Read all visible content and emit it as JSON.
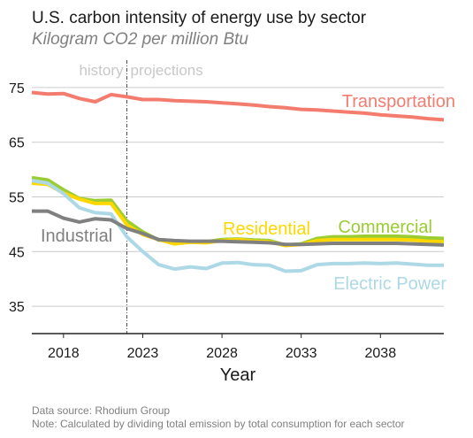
{
  "chart_data": {
    "type": "line",
    "title": "U.S. carbon intensity of energy use by sector",
    "subtitle": "Kilogram CO2 per million Btu",
    "xlabel": "Year",
    "ylabel": "",
    "xlim": [
      2016,
      2042
    ],
    "ylim": [
      30,
      80
    ],
    "x_ticks": [
      2018,
      2023,
      2028,
      2033,
      2038
    ],
    "y_ticks": [
      35,
      45,
      55,
      65,
      75
    ],
    "grid": "horizontal",
    "divider_year": 2022,
    "era_labels": {
      "history": "history",
      "projections": "projections"
    },
    "x": [
      2016,
      2017,
      2018,
      2019,
      2020,
      2021,
      2022,
      2023,
      2024,
      2025,
      2026,
      2027,
      2028,
      2029,
      2030,
      2031,
      2032,
      2033,
      2034,
      2035,
      2036,
      2037,
      2038,
      2039,
      2040,
      2041,
      2042
    ],
    "series": [
      {
        "name": "Transportation",
        "color": "#f47c6e",
        "values": [
          74.1,
          73.8,
          73.9,
          73.0,
          72.4,
          73.7,
          73.3,
          72.8,
          72.8,
          72.6,
          72.5,
          72.4,
          72.2,
          72.0,
          71.8,
          71.5,
          71.3,
          71.0,
          70.9,
          70.7,
          70.5,
          70.3,
          70.0,
          69.8,
          69.6,
          69.3,
          69.1
        ]
      },
      {
        "name": "Commercial",
        "color": "#9acd32",
        "values": [
          58.5,
          58.1,
          56.3,
          54.7,
          54.3,
          54.4,
          50.6,
          48.6,
          47.1,
          46.8,
          46.8,
          46.8,
          47.2,
          47.3,
          47.1,
          47.0,
          46.2,
          46.4,
          47.4,
          47.7,
          47.7,
          47.8,
          47.8,
          47.8,
          47.7,
          47.5,
          47.4
        ]
      },
      {
        "name": "Residential",
        "color": "#ffd700",
        "values": [
          57.5,
          57.3,
          55.7,
          54.6,
          53.8,
          53.8,
          49.9,
          48.1,
          47.2,
          46.4,
          46.7,
          46.6,
          47.0,
          47.2,
          46.9,
          46.8,
          46.1,
          46.3,
          47.0,
          47.2,
          47.2,
          47.2,
          47.2,
          47.2,
          47.1,
          46.9,
          46.8
        ]
      },
      {
        "name": "Electric Power",
        "color": "#add8e6",
        "values": [
          58.0,
          57.5,
          55.6,
          53.0,
          52.1,
          51.9,
          47.7,
          45.0,
          42.6,
          41.8,
          42.2,
          41.9,
          42.9,
          43.0,
          42.6,
          42.5,
          41.4,
          41.5,
          42.6,
          42.8,
          42.8,
          42.9,
          42.8,
          42.9,
          42.7,
          42.5,
          42.5
        ]
      },
      {
        "name": "Industrial",
        "color": "#808080",
        "values": [
          52.4,
          52.4,
          51.1,
          50.4,
          51.0,
          50.8,
          49.2,
          48.3,
          47.2,
          47.0,
          46.9,
          46.9,
          46.9,
          46.8,
          46.7,
          46.6,
          46.3,
          46.3,
          46.4,
          46.5,
          46.5,
          46.5,
          46.5,
          46.5,
          46.4,
          46.3,
          46.2
        ]
      }
    ],
    "series_labels": [
      {
        "text": "Transportation",
        "color": "#f47c6e"
      },
      {
        "text": "Residential",
        "color": "#ffd700"
      },
      {
        "text": "Commercial",
        "color": "#9acd32"
      },
      {
        "text": "Electric Power",
        "color": "#add8e6"
      },
      {
        "text": "Industrial",
        "color": "#808080"
      }
    ]
  },
  "notes": {
    "source": "Data source: Rhodium Group",
    "note": "Note: Calculated by dividing total emission by total consumption for each sector"
  }
}
